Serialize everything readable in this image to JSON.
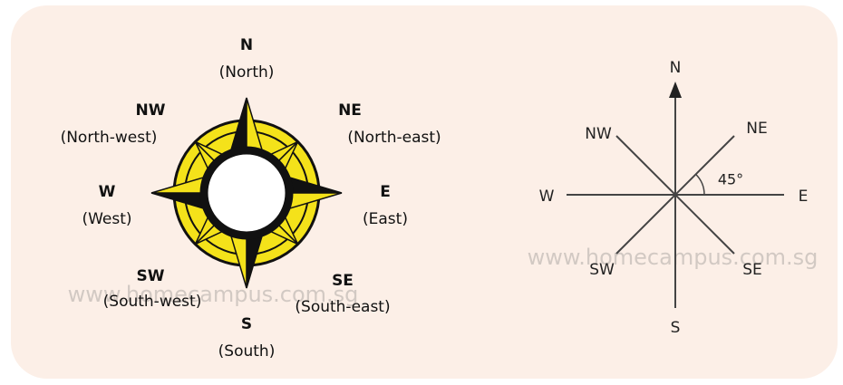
{
  "compass_rose": {
    "points": [
      {
        "abbr": "N",
        "name": "(North)"
      },
      {
        "abbr": "NE",
        "name": "(North-east)"
      },
      {
        "abbr": "E",
        "name": "(East)"
      },
      {
        "abbr": "SE",
        "name": "(South-east)"
      },
      {
        "abbr": "S",
        "name": "(South)"
      },
      {
        "abbr": "SW",
        "name": "(South-west)"
      },
      {
        "abbr": "W",
        "name": "(West)"
      },
      {
        "abbr": "NW",
        "name": "(North-west)"
      }
    ]
  },
  "direction_lines": {
    "points": [
      "N",
      "NE",
      "E",
      "SE",
      "S",
      "SW",
      "W",
      "NW"
    ],
    "angle": "45°"
  },
  "watermark": "www.homecampus.com.sg"
}
